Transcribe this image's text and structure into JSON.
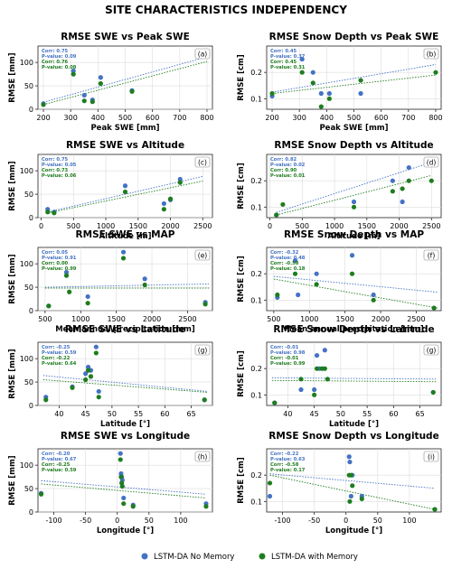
{
  "figure": {
    "title": "SITE CHARACTERISTICS INDEPENDENCY"
  },
  "legend": {
    "items": [
      {
        "label": "LSTM-DA No Memory",
        "color": "#4472c4"
      },
      {
        "label": "LSTM-DA with Memory",
        "color": "#1e7d1e"
      }
    ]
  },
  "chart_data": [
    {
      "type": "scatter",
      "title": "RMSE SWE vs Peak SWE",
      "panel_label": "(a)",
      "xlabel": "Peak SWE [mm]",
      "ylabel": "RMSE [mm]",
      "xlim": [
        180,
        820
      ],
      "ylim": [
        0,
        135
      ],
      "xticks": [
        200,
        300,
        400,
        500,
        600,
        700,
        800
      ],
      "yticks": [
        0,
        50,
        100
      ],
      "stats": {
        "no_memory": [
          "Corr: 0.75",
          "P-value: 0.09"
        ],
        "with_memory": [
          "Corr: 0.76",
          "P-value: 0.08"
        ]
      },
      "series": [
        {
          "name": "LSTM-DA No Memory",
          "x": [
            200,
            310,
            350,
            380,
            410,
            525
          ],
          "y": [
            12,
            82,
            30,
            20,
            68,
            40
          ],
          "fit": [
            [
              200,
              15
            ],
            [
              800,
              112
            ]
          ]
        },
        {
          "name": "LSTM-DA with Memory",
          "x": [
            200,
            310,
            350,
            380,
            410,
            525
          ],
          "y": [
            10,
            75,
            18,
            16,
            55,
            38
          ],
          "fit": [
            [
              200,
              10
            ],
            [
              800,
              102
            ]
          ]
        }
      ]
    },
    {
      "type": "scatter",
      "title": "RMSE Snow Depth vs Peak SWE",
      "panel_label": "(b)",
      "xlabel": "Peak SWE [mm]",
      "ylabel": "RMSE [cm]",
      "xlim": [
        180,
        820
      ],
      "ylim": [
        0.06,
        0.3
      ],
      "xticks": [
        200,
        300,
        400,
        500,
        600,
        700,
        800
      ],
      "yticks": [
        0.1,
        0.2
      ],
      "stats": {
        "no_memory": [
          "Corr: 0.45",
          "P-value: 0.37"
        ],
        "with_memory": [
          "Corr: 0.45",
          "P-value: 0.31"
        ]
      },
      "series": [
        {
          "name": "LSTM-DA No Memory",
          "x": [
            200,
            310,
            350,
            380,
            410,
            525
          ],
          "y": [
            0.11,
            0.25,
            0.2,
            0.12,
            0.12,
            0.12
          ],
          "fit": [
            [
              200,
              0.125
            ],
            [
              800,
              0.23
            ]
          ]
        },
        {
          "name": "LSTM-DA with Memory",
          "x": [
            200,
            310,
            350,
            380,
            410,
            525,
            800
          ],
          "y": [
            0.12,
            0.2,
            0.16,
            0.07,
            0.1,
            0.17,
            0.2
          ],
          "fit": [
            [
              200,
              0.12
            ],
            [
              800,
              0.19
            ]
          ]
        }
      ]
    },
    {
      "type": "scatter",
      "title": "RMSE SWE  vs Altitude",
      "panel_label": "(c)",
      "xlabel": "Altitude [m]",
      "ylabel": "RMSE [mm]",
      "xlim": [
        -50,
        2650
      ],
      "ylim": [
        0,
        135
      ],
      "xticks": [
        0,
        500,
        1000,
        1500,
        2000,
        2500
      ],
      "yticks": [
        0,
        50,
        100
      ],
      "stats": {
        "no_memory": [
          "Corr: 0.75",
          "P-value: 0.05"
        ],
        "with_memory": [
          "Corr: 0.73",
          "P-value: 0.06"
        ]
      },
      "series": [
        {
          "name": "LSTM-DA No Memory",
          "x": [
            100,
            200,
            1300,
            1900,
            2000,
            2150
          ],
          "y": [
            18,
            12,
            68,
            30,
            38,
            82
          ],
          "fit": [
            [
              100,
              12
            ],
            [
              2500,
              88
            ]
          ]
        },
        {
          "name": "LSTM-DA with Memory",
          "x": [
            100,
            200,
            1300,
            1900,
            2000,
            2150
          ],
          "y": [
            12,
            10,
            55,
            18,
            40,
            75
          ],
          "fit": [
            [
              100,
              10
            ],
            [
              2500,
              78
            ]
          ]
        }
      ]
    },
    {
      "type": "scatter",
      "title": "RMSE Snow Depth vs Altitude",
      "panel_label": "(d)",
      "xlabel": "Altitude [m]",
      "ylabel": "RMSE [cm]",
      "xlim": [
        -50,
        2650
      ],
      "ylim": [
        0.06,
        0.3
      ],
      "xticks": [
        0,
        500,
        1000,
        1500,
        2000,
        2500
      ],
      "yticks": [
        0.1,
        0.2
      ],
      "stats": {
        "no_memory": [
          "Corr: 0.82",
          "P-value: 0.02"
        ],
        "with_memory": [
          "Corr: 0.90",
          "P-value: 0.01"
        ]
      },
      "series": [
        {
          "name": "LSTM-DA No Memory",
          "x": [
            100,
            1300,
            1900,
            2050,
            2150
          ],
          "y": [
            0.07,
            0.12,
            0.2,
            0.12,
            0.25
          ],
          "fit": [
            [
              100,
              0.08
            ],
            [
              2500,
              0.27
            ]
          ]
        },
        {
          "name": "LSTM-DA with Memory",
          "x": [
            100,
            200,
            1300,
            1900,
            2050,
            2150,
            2500
          ],
          "y": [
            0.07,
            0.11,
            0.1,
            0.16,
            0.17,
            0.2,
            0.2
          ],
          "fit": [
            [
              100,
              0.07
            ],
            [
              2500,
              0.22
            ]
          ]
        }
      ]
    },
    {
      "type": "scatter",
      "title": "RMSE SWE vs MAP",
      "panel_label": "(e)",
      "xlabel": "Mean annual precipitation [mm]",
      "ylabel": "RMSE [mm]",
      "xlim": [
        400,
        2850
      ],
      "ylim": [
        0,
        135
      ],
      "xticks": [
        500,
        1000,
        1500,
        2000,
        2500
      ],
      "yticks": [
        0,
        50,
        100
      ],
      "stats": {
        "no_memory": [
          "Corr: 0.05",
          "P-value: 0.91"
        ],
        "with_memory": [
          "Corr: 0.00",
          "P-value: 0.99"
        ]
      },
      "series": [
        {
          "name": "LSTM-DA No Memory",
          "x": [
            550,
            800,
            1100,
            1600,
            1900,
            2750
          ],
          "y": [
            10,
            82,
            30,
            125,
            68,
            18
          ],
          "fit": [
            [
              500,
              50
            ],
            [
              2800,
              57
            ]
          ]
        },
        {
          "name": "LSTM-DA with Memory",
          "x": [
            550,
            800,
            840,
            1100,
            1600,
            1900,
            2750
          ],
          "y": [
            10,
            75,
            40,
            16,
            112,
            55,
            14
          ],
          "fit": [
            [
              500,
              48
            ],
            [
              2800,
              48
            ]
          ]
        }
      ]
    },
    {
      "type": "scatter",
      "title": "RMSE Snow Depth vs MAP",
      "panel_label": "(f)",
      "xlabel": "Mean annual precipitation [mm]",
      "ylabel": "RMSE [cm]",
      "xlim": [
        400,
        2850
      ],
      "ylim": [
        0.06,
        0.3
      ],
      "xticks": [
        500,
        1000,
        1500,
        2000,
        2500
      ],
      "yticks": [
        0.1,
        0.2
      ],
      "stats": {
        "no_memory": [
          "Corr: -0.32",
          "P-value: 0.48"
        ],
        "with_memory": [
          "Corr: -0.58",
          "P-value: 0.18"
        ]
      },
      "series": [
        {
          "name": "LSTM-DA No Memory",
          "x": [
            550,
            800,
            840,
            1100,
            1600,
            1900,
            2750
          ],
          "y": [
            0.11,
            0.25,
            0.12,
            0.2,
            0.27,
            0.12,
            0.07
          ],
          "fit": [
            [
              500,
              0.19
            ],
            [
              2800,
              0.13
            ]
          ]
        },
        {
          "name": "LSTM-DA with Memory",
          "x": [
            550,
            800,
            1100,
            1600,
            1900,
            2750
          ],
          "y": [
            0.12,
            0.2,
            0.16,
            0.2,
            0.1,
            0.07
          ],
          "fit": [
            [
              500,
              0.18
            ],
            [
              2800,
              0.07
            ]
          ]
        }
      ]
    },
    {
      "type": "scatter",
      "title": "RMSE SWE vs Latitude",
      "panel_label": "(g)",
      "xlabel": "Latitude [°]",
      "ylabel": "RMSE [mm]",
      "xlim": [
        36,
        69
      ],
      "ylim": [
        0,
        135
      ],
      "xticks": [
        40,
        45,
        50,
        55,
        60,
        65
      ],
      "yticks": [
        0,
        50,
        100
      ],
      "stats": {
        "no_memory": [
          "Corr: -0.25",
          "P-value: 0.59"
        ],
        "with_memory": [
          "Corr: -0.22",
          "P-value: 0.64"
        ]
      },
      "series": [
        {
          "name": "LSTM-DA No Memory",
          "x": [
            37.5,
            42.5,
            45,
            45.5,
            46,
            47,
            47.5,
            67.5
          ],
          "y": [
            18,
            40,
            68,
            82,
            75,
            125,
            30,
            12
          ],
          "fit": [
            [
              37,
              64
            ],
            [
              68,
              30
            ]
          ]
        },
        {
          "name": "LSTM-DA with Memory",
          "x": [
            37.5,
            42.5,
            45,
            45.5,
            46,
            47,
            47.5,
            67.5
          ],
          "y": [
            12,
            38,
            55,
            75,
            62,
            112,
            18,
            12
          ],
          "fit": [
            [
              37,
              55
            ],
            [
              68,
              28
            ]
          ]
        }
      ]
    },
    {
      "type": "scatter",
      "title": "RMSE Snow Depth vs Latitude",
      "panel_label": "(g)",
      "xlabel": "Latitude [°]",
      "ylabel": "RMSE [cm]",
      "xlim": [
        36,
        69
      ],
      "ylim": [
        0.06,
        0.3
      ],
      "xticks": [
        40,
        45,
        50,
        55,
        60,
        65
      ],
      "yticks": [
        0.1,
        0.2
      ],
      "stats": {
        "no_memory": [
          "Corr: -0.01",
          "P-value: 0.98"
        ],
        "with_memory": [
          "Corr: -0.01",
          "P-value: 0.99"
        ]
      },
      "series": [
        {
          "name": "LSTM-DA No Memory",
          "x": [
            37.5,
            42.5,
            45,
            45.5,
            46,
            47,
            67.5
          ],
          "y": [
            0.07,
            0.12,
            0.12,
            0.25,
            0.2,
            0.27,
            0.11
          ],
          "fit": [
            [
              37,
              0.165
            ],
            [
              68,
              0.16
            ]
          ]
        },
        {
          "name": "LSTM-DA with Memory",
          "x": [
            37.5,
            42.5,
            45,
            45.5,
            46.5,
            47,
            47.5,
            67.5
          ],
          "y": [
            0.07,
            0.16,
            0.1,
            0.2,
            0.2,
            0.2,
            0.16,
            0.11
          ],
          "fit": [
            [
              37,
              0.155
            ],
            [
              68,
              0.15
            ]
          ]
        }
      ]
    },
    {
      "type": "scatter",
      "title": "RMSE SWE vs Longitude",
      "panel_label": "(h)",
      "xlabel": "Longitude [°]",
      "ylabel": "RMSE [mm]",
      "xlim": [
        -125,
        150
      ],
      "ylim": [
        0,
        135
      ],
      "xticks": [
        -100,
        -50,
        0,
        50,
        100
      ],
      "yticks": [
        0,
        50,
        100
      ],
      "stats": {
        "no_memory": [
          "Corr: -0.20",
          "P-value: 0.67"
        ],
        "with_memory": [
          "Corr: -0.25",
          "P-value: 0.59"
        ]
      },
      "series": [
        {
          "name": "LSTM-DA No Memory",
          "x": [
            -120,
            5,
            6,
            7,
            8,
            10,
            25,
            140
          ],
          "y": [
            40,
            125,
            82,
            75,
            68,
            30,
            15,
            18
          ],
          "fit": [
            [
              -120,
              67
            ],
            [
              140,
              38
            ]
          ]
        },
        {
          "name": "LSTM-DA with Memory",
          "x": [
            -120,
            5,
            6,
            7,
            8,
            10,
            25,
            140
          ],
          "y": [
            38,
            112,
            75,
            62,
            55,
            18,
            12,
            12
          ],
          "fit": [
            [
              -120,
              60
            ],
            [
              140,
              30
            ]
          ]
        }
      ]
    },
    {
      "type": "scatter",
      "title": "RMSE Snow Depth vs Longitude",
      "panel_label": "(i)",
      "xlabel": "Longitude [°]",
      "ylabel": "RMSE [cm]",
      "xlim": [
        -125,
        150
      ],
      "ylim": [
        0.06,
        0.3
      ],
      "xticks": [
        -100,
        -50,
        0,
        50,
        100
      ],
      "yticks": [
        0.1,
        0.2
      ],
      "stats": {
        "no_memory": [
          "Corr: -0.22",
          "P-value: 0.63"
        ],
        "with_memory": [
          "Corr: -0.58",
          "P-value: 0.17"
        ]
      },
      "series": [
        {
          "name": "LSTM-DA No Memory",
          "x": [
            -120,
            5,
            6,
            8,
            10,
            25,
            140
          ],
          "y": [
            0.12,
            0.27,
            0.25,
            0.12,
            0.2,
            0.12,
            0.07
          ],
          "fit": [
            [
              -120,
              0.205
            ],
            [
              140,
              0.15
            ]
          ]
        },
        {
          "name": "LSTM-DA with Memory",
          "x": [
            -120,
            5,
            6,
            8,
            10,
            25,
            140
          ],
          "y": [
            0.17,
            0.2,
            0.1,
            0.2,
            0.16,
            0.11,
            0.07
          ],
          "fit": [
            [
              -120,
              0.2
            ],
            [
              140,
              0.07
            ]
          ]
        }
      ]
    }
  ]
}
